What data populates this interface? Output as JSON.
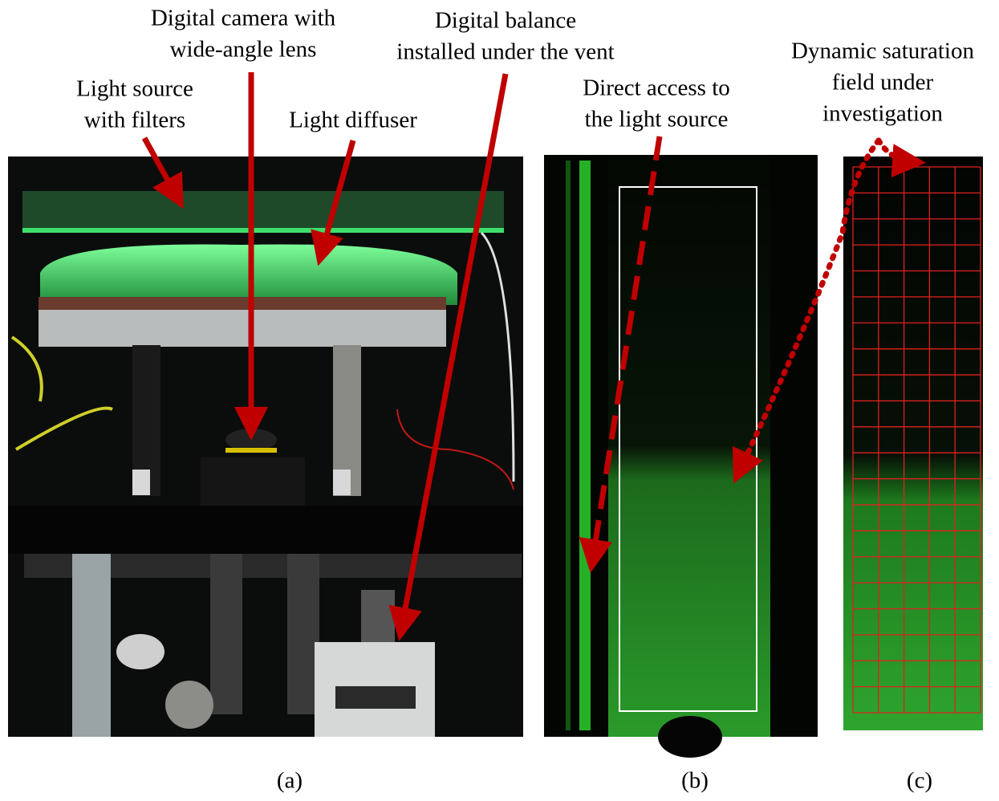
{
  "annotations": [
    {
      "lines": [
        "Digital camera with",
        "wide-angle lens"
      ]
    },
    {
      "lines": [
        "Digital balance",
        "installed under the vent"
      ]
    },
    {
      "lines": [
        "Light source",
        "with filters"
      ]
    },
    {
      "lines": [
        "Light diffuser"
      ]
    },
    {
      "lines": [
        "Direct access to",
        "the light source"
      ]
    },
    {
      "lines": [
        "Dynamic saturation",
        "field under",
        "investigation"
      ]
    }
  ],
  "panels": [
    {
      "caption": "(a)"
    },
    {
      "caption": "(b)"
    },
    {
      "caption": "(c)"
    }
  ]
}
